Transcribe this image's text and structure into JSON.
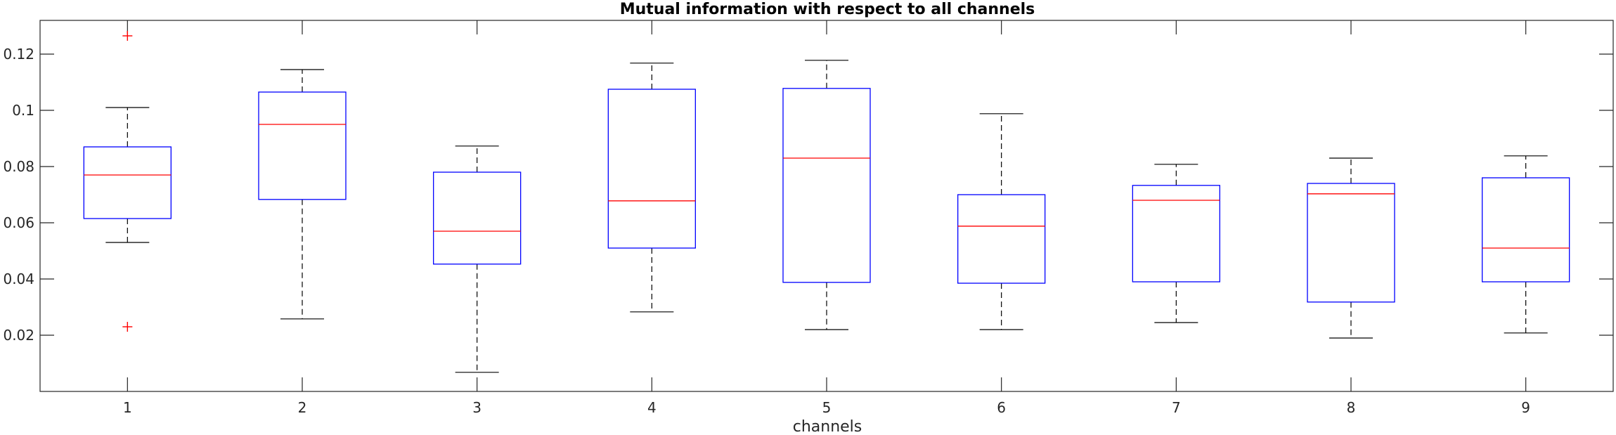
{
  "chart_data": {
    "type": "box",
    "title": "Mutual information with respect to all channels",
    "xlabel": "channels",
    "ylabel": "",
    "xlim": [
      0.5,
      9.5
    ],
    "ylim": [
      0.0,
      0.132
    ],
    "grid": false,
    "categories": [
      "1",
      "2",
      "3",
      "4",
      "5",
      "6",
      "7",
      "8",
      "9"
    ],
    "y_ticks": [
      0.02,
      0.04,
      0.06,
      0.08,
      0.1,
      0.12
    ],
    "y_tick_labels": [
      "0.02",
      "0.04",
      "0.06",
      "0.08",
      "0.1",
      "0.12"
    ],
    "boxes": [
      {
        "category": "1",
        "whisker_low": 0.053,
        "q1": 0.0615,
        "median": 0.077,
        "q3": 0.087,
        "whisker_high": 0.101,
        "outliers": [
          0.1265,
          0.023
        ]
      },
      {
        "category": "2",
        "whisker_low": 0.0258,
        "q1": 0.0683,
        "median": 0.095,
        "q3": 0.1065,
        "whisker_high": 0.1145,
        "outliers": []
      },
      {
        "category": "3",
        "whisker_low": 0.0068,
        "q1": 0.0453,
        "median": 0.057,
        "q3": 0.078,
        "whisker_high": 0.0873,
        "outliers": []
      },
      {
        "category": "4",
        "whisker_low": 0.0283,
        "q1": 0.051,
        "median": 0.0678,
        "q3": 0.1075,
        "whisker_high": 0.1168,
        "outliers": []
      },
      {
        "category": "5",
        "whisker_low": 0.022,
        "q1": 0.0388,
        "median": 0.083,
        "q3": 0.1078,
        "whisker_high": 0.1178,
        "outliers": []
      },
      {
        "category": "6",
        "whisker_low": 0.022,
        "q1": 0.0385,
        "median": 0.0588,
        "q3": 0.07,
        "whisker_high": 0.0988,
        "outliers": []
      },
      {
        "category": "7",
        "whisker_low": 0.0245,
        "q1": 0.039,
        "median": 0.068,
        "q3": 0.0733,
        "whisker_high": 0.0808,
        "outliers": []
      },
      {
        "category": "8",
        "whisker_low": 0.019,
        "q1": 0.0318,
        "median": 0.0703,
        "q3": 0.074,
        "whisker_high": 0.083,
        "outliers": []
      },
      {
        "category": "9",
        "whisker_low": 0.0208,
        "q1": 0.039,
        "median": 0.051,
        "q3": 0.076,
        "whisker_high": 0.0838,
        "outliers": []
      }
    ],
    "colors": {
      "box": "#0000ff",
      "median": "#ff0000",
      "whisker": "#000000",
      "outlier": "#ff0000",
      "axis": "#262626"
    }
  }
}
